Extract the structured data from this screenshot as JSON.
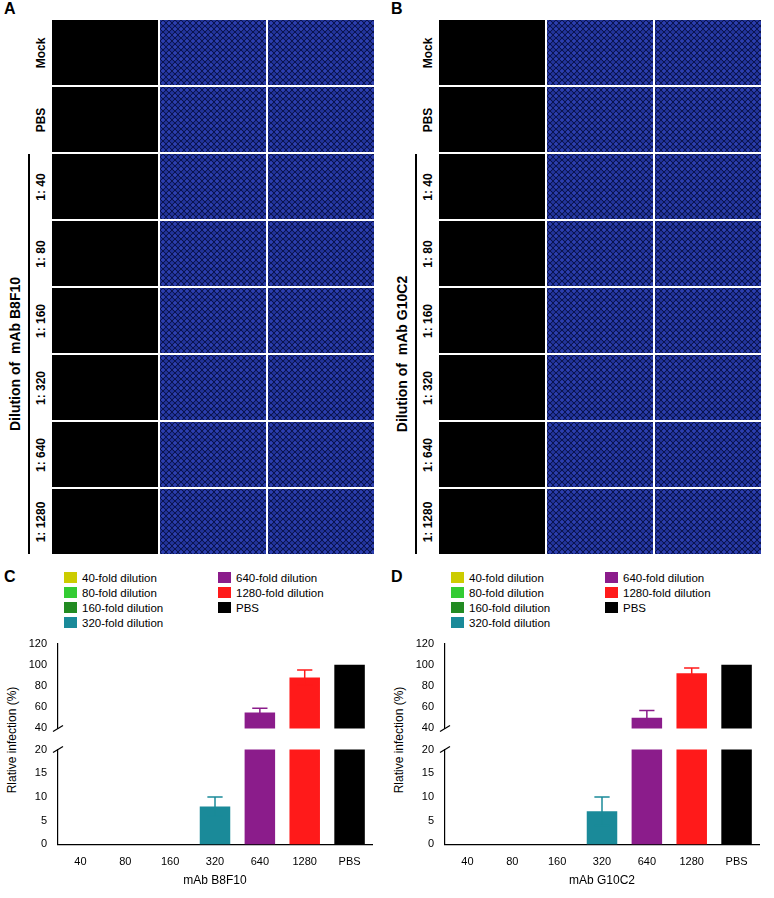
{
  "panels": [
    {
      "letter": "A",
      "group_label": "Dilution of  mAb B8F10",
      "controls": [
        "Mock",
        "PBS"
      ],
      "dilutions": [
        "1: 40",
        "1: 80",
        "1: 160",
        "1: 320",
        "1: 640",
        "1: 1280"
      ]
    },
    {
      "letter": "B",
      "group_label": "Dilution of  mAb G10C2",
      "controls": [
        "Mock",
        "PBS"
      ],
      "dilutions": [
        "1: 40",
        "1: 80",
        "1: 160",
        "1: 320",
        "1: 640",
        "1: 1280"
      ]
    }
  ],
  "chart_data": [
    {
      "type": "bar",
      "letter": "C",
      "x_label": "mAb B8F10",
      "y_label": "Rlative infection (%)",
      "categories": [
        "40",
        "80",
        "160",
        "320",
        "640",
        "1280",
        "PBS"
      ],
      "ylim": [
        0,
        120
      ],
      "ybreak": [
        20,
        40
      ],
      "yticks": [
        0,
        5,
        10,
        15,
        20,
        40,
        60,
        80,
        100,
        120
      ],
      "grid": false,
      "legend": "top",
      "series": [
        {
          "name": "40-fold dilution",
          "color": "#cccc00",
          "values": [
            0,
            null,
            null,
            null,
            null,
            null,
            null
          ],
          "errors": [
            0,
            null,
            null,
            null,
            null,
            null,
            null
          ]
        },
        {
          "name": "80-fold dilution",
          "color": "#33cc33",
          "values": [
            null,
            0,
            null,
            null,
            null,
            null,
            null
          ],
          "errors": [
            null,
            0,
            null,
            null,
            null,
            null,
            null
          ]
        },
        {
          "name": "160-fold dilution",
          "color": "#228b22",
          "values": [
            null,
            null,
            0,
            null,
            null,
            null,
            null
          ],
          "errors": [
            null,
            null,
            0,
            null,
            null,
            null,
            null
          ]
        },
        {
          "name": "320-fold dilution",
          "color": "#1a8a99",
          "values": [
            null,
            null,
            null,
            8,
            null,
            null,
            null
          ],
          "errors": [
            null,
            null,
            null,
            2,
            null,
            null,
            null
          ]
        },
        {
          "name": "640-fold dilution",
          "color": "#8b1c8b",
          "values": [
            null,
            null,
            null,
            null,
            55,
            null,
            null
          ],
          "errors": [
            null,
            null,
            null,
            null,
            4,
            null,
            null
          ]
        },
        {
          "name": "1280-fold dilution",
          "color": "#ff1a1a",
          "values": [
            null,
            null,
            null,
            null,
            null,
            88,
            null
          ],
          "errors": [
            null,
            null,
            null,
            null,
            null,
            7,
            null
          ]
        },
        {
          "name": "PBS",
          "color": "#000000",
          "values": [
            null,
            null,
            null,
            null,
            null,
            null,
            100
          ],
          "errors": [
            null,
            null,
            null,
            null,
            null,
            null,
            0
          ]
        }
      ]
    },
    {
      "type": "bar",
      "letter": "D",
      "x_label": "mAb G10C2",
      "y_label": "Rlative infection (%)",
      "categories": [
        "40",
        "80",
        "160",
        "320",
        "640",
        "1280",
        "PBS"
      ],
      "ylim": [
        0,
        120
      ],
      "ybreak": [
        20,
        40
      ],
      "yticks": [
        0,
        5,
        10,
        15,
        20,
        40,
        60,
        80,
        100,
        120
      ],
      "grid": false,
      "legend": "top",
      "series": [
        {
          "name": "40-fold dilution",
          "color": "#cccc00",
          "values": [
            0,
            null,
            null,
            null,
            null,
            null,
            null
          ],
          "errors": [
            0,
            null,
            null,
            null,
            null,
            null,
            null
          ]
        },
        {
          "name": "80-fold dilution",
          "color": "#33cc33",
          "values": [
            null,
            0,
            null,
            null,
            null,
            null,
            null
          ],
          "errors": [
            null,
            0,
            null,
            null,
            null,
            null,
            null
          ]
        },
        {
          "name": "160-fold dilution",
          "color": "#228b22",
          "values": [
            null,
            null,
            0,
            null,
            null,
            null,
            null
          ],
          "errors": [
            null,
            null,
            0,
            null,
            null,
            null,
            null
          ]
        },
        {
          "name": "320-fold dilution",
          "color": "#1a8a99",
          "values": [
            null,
            null,
            null,
            7,
            null,
            null,
            null
          ],
          "errors": [
            null,
            null,
            null,
            3,
            null,
            null,
            null
          ]
        },
        {
          "name": "640-fold dilution",
          "color": "#8b1c8b",
          "values": [
            null,
            null,
            null,
            null,
            50,
            null,
            null
          ],
          "errors": [
            null,
            null,
            null,
            null,
            7,
            null,
            null
          ]
        },
        {
          "name": "1280-fold dilution",
          "color": "#ff1a1a",
          "values": [
            null,
            null,
            null,
            null,
            null,
            92,
            null
          ],
          "errors": [
            null,
            null,
            null,
            null,
            null,
            5,
            null
          ]
        },
        {
          "name": "PBS",
          "color": "#000000",
          "values": [
            null,
            null,
            null,
            null,
            null,
            null,
            100
          ],
          "errors": [
            null,
            null,
            null,
            null,
            null,
            null,
            0
          ]
        }
      ]
    }
  ]
}
